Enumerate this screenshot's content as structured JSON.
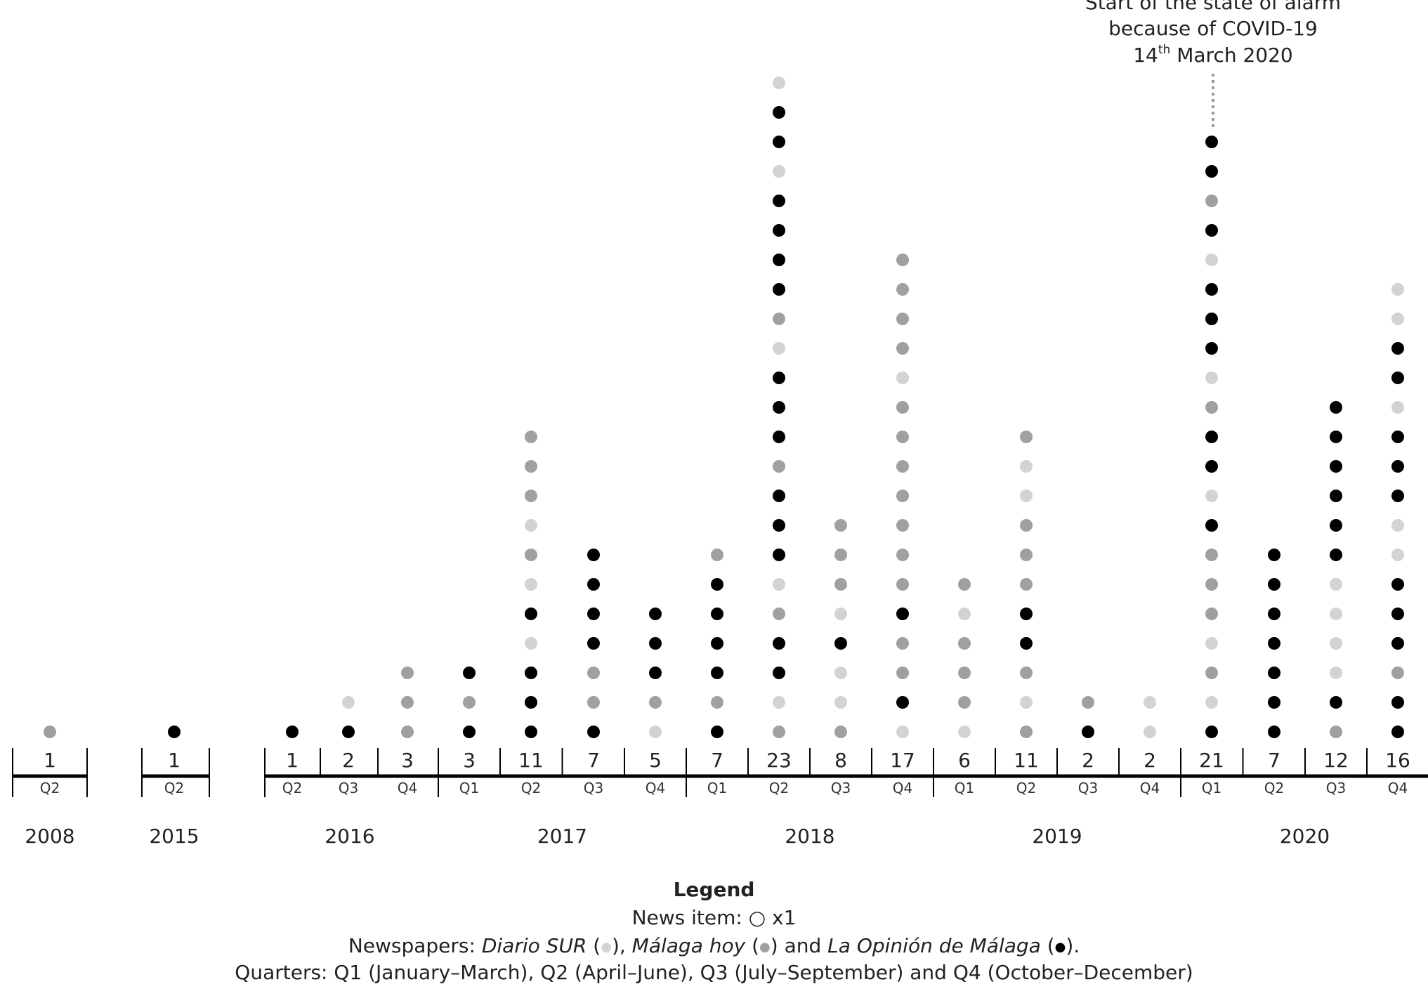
{
  "chart_data": {
    "type": "dot-timeline",
    "annotation": {
      "line1": "Start of the state of alarm",
      "line2": "because of COVID-19",
      "line3_day": "14",
      "line3_sup": "th",
      "line3_rest": " March 2020",
      "at_period": "2020 Q1"
    },
    "colors": {
      "Diario SUR": "#d3d3d3",
      "Málaga hoy": "#a0a0a0",
      "La Opinión de Málaga": "#000000"
    },
    "periods": [
      {
        "year": "2008",
        "quarter": "Q2",
        "count": 1,
        "stack": [
          "M"
        ]
      },
      {
        "year": "2015",
        "quarter": "Q2",
        "count": 1,
        "stack": [
          "O"
        ]
      },
      {
        "year": "2016",
        "quarter": "Q2",
        "count": 1,
        "stack": [
          "O"
        ]
      },
      {
        "year": "2016",
        "quarter": "Q3",
        "count": 2,
        "stack": [
          "O",
          "S"
        ]
      },
      {
        "year": "2016",
        "quarter": "Q4",
        "count": 3,
        "stack": [
          "M",
          "M",
          "M"
        ]
      },
      {
        "year": "2017",
        "quarter": "Q1",
        "count": 3,
        "stack": [
          "O",
          "M",
          "O"
        ]
      },
      {
        "year": "2017",
        "quarter": "Q2",
        "count": 11,
        "stack": [
          "O",
          "O",
          "O",
          "S",
          "O",
          "S",
          "M",
          "S",
          "M",
          "M",
          "M"
        ]
      },
      {
        "year": "2017",
        "quarter": "Q3",
        "count": 7,
        "stack": [
          "O",
          "M",
          "M",
          "O",
          "O",
          "O",
          "O"
        ]
      },
      {
        "year": "2017",
        "quarter": "Q4",
        "count": 5,
        "stack": [
          "S",
          "M",
          "O",
          "O",
          "O"
        ]
      },
      {
        "year": "2018",
        "quarter": "Q1",
        "count": 7,
        "stack": [
          "O",
          "M",
          "O",
          "O",
          "O",
          "O",
          "M"
        ]
      },
      {
        "year": "2018",
        "quarter": "Q2",
        "count": 23,
        "stack": [
          "M",
          "S",
          "O",
          "O",
          "M",
          "S",
          "O",
          "O",
          "O",
          "M",
          "O",
          "O",
          "O",
          "S",
          "M",
          "O",
          "O",
          "O",
          "O",
          "S",
          "O",
          "O",
          "S"
        ]
      },
      {
        "year": "2018",
        "quarter": "Q3",
        "count": 8,
        "stack": [
          "M",
          "S",
          "S",
          "O",
          "S",
          "M",
          "M",
          "M"
        ]
      },
      {
        "year": "2018",
        "quarter": "Q4",
        "count": 17,
        "stack": [
          "S",
          "O",
          "M",
          "M",
          "O",
          "M",
          "M",
          "M",
          "M",
          "M",
          "M",
          "M",
          "S",
          "M",
          "M",
          "M",
          "M"
        ]
      },
      {
        "year": "2019",
        "quarter": "Q1",
        "count": 6,
        "stack": [
          "S",
          "M",
          "M",
          "M",
          "S",
          "M"
        ]
      },
      {
        "year": "2019",
        "quarter": "Q2",
        "count": 11,
        "stack": [
          "M",
          "S",
          "M",
          "O",
          "O",
          "M",
          "M",
          "M",
          "S",
          "S",
          "M"
        ]
      },
      {
        "year": "2019",
        "quarter": "Q3",
        "count": 2,
        "stack": [
          "O",
          "M"
        ]
      },
      {
        "year": "2019",
        "quarter": "Q4",
        "count": 2,
        "stack": [
          "S",
          "S"
        ]
      },
      {
        "year": "2020",
        "quarter": "Q1",
        "count": 21,
        "stack": [
          "O",
          "S",
          "M",
          "S",
          "M",
          "M",
          "M",
          "O",
          "S",
          "O",
          "O",
          "M",
          "S",
          "O",
          "O",
          "O",
          "S",
          "O",
          "M",
          "O",
          "O"
        ]
      },
      {
        "year": "2020",
        "quarter": "Q2",
        "count": 7,
        "stack": [
          "O",
          "O",
          "O",
          "O",
          "O",
          "O",
          "O"
        ]
      },
      {
        "year": "2020",
        "quarter": "Q3",
        "count": 12,
        "stack": [
          "M",
          "O",
          "S",
          "S",
          "S",
          "S",
          "O",
          "O",
          "O",
          "O",
          "O",
          "O"
        ]
      },
      {
        "year": "2020",
        "quarter": "Q4",
        "count": 16,
        "stack": [
          "O",
          "O",
          "M",
          "O",
          "O",
          "O",
          "S",
          "S",
          "O",
          "O",
          "O",
          "S",
          "O",
          "O",
          "S",
          "S"
        ]
      }
    ],
    "years": [
      "2008",
      "2015",
      "2016",
      "2017",
      "2018",
      "2019",
      "2020"
    ]
  },
  "legend": {
    "title": "Legend",
    "news_item": "News item: ○ x1",
    "newspapers_prefix": "Newspapers: ",
    "paper1": "Diario SUR",
    "paper2": "Málaga hoy",
    "paper3": "La Opinión de Málaga",
    "sep1": " (",
    "sep2": "), ",
    "sep3": ") and ",
    "end": ").",
    "dot_symbol": "●",
    "quarters": "Quarters: Q1 (January–March), Q2 (April–June), Q3 (July–September) and Q4 (October–December)"
  }
}
